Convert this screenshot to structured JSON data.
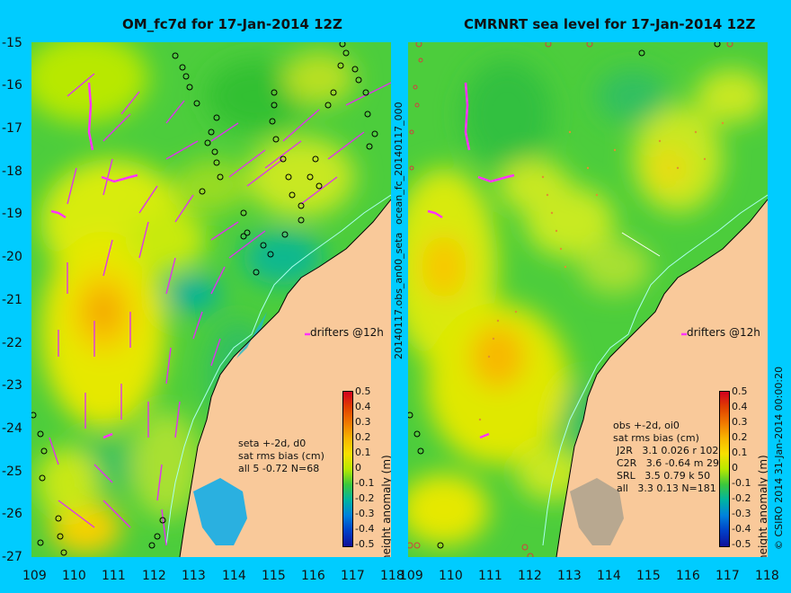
{
  "left_panel": {
    "title": "OM_fc7d for 17-Jan-2014 12Z",
    "drifter_label": "drifters @12h",
    "stats": [
      "seta +-2d, d0",
      "sat rms bias (cm)",
      "all 5 -0.72 N=68"
    ]
  },
  "right_panel": {
    "title": "CMRNRT sea level  for 17-Jan-2014 12Z",
    "drifter_label": "drifters @12h",
    "stats": [
      "obs +-2d, oi0",
      "sat rms bias (cm)",
      "J2R   3.1 0.026 r 102",
      "C2R   3.6 -0.64 m 29",
      "SRL   3.5 0.79 k 50",
      "all   3.3 0.13 N=181"
    ]
  },
  "middle_label": "20140117.obs_an00_seta",
  "middle_label_2": "ocean_fc_20140117_000",
  "right_credit": "© CSIRO 2014   31-Jan-2014 00:00:20",
  "colorbar_title": "height anomaly (m)",
  "colorbar_ticks": [
    "0.5",
    "0.4",
    "0.3",
    "0.2",
    "0.1",
    "0",
    "-0.1",
    "-0.2",
    "-0.3",
    "-0.4",
    "-0.5"
  ],
  "colorbar_colors": [
    "#d2001e",
    "#e04000",
    "#f07800",
    "#f8b400",
    "#f8e000",
    "#b8e800",
    "#3cc83c",
    "#00b4a0",
    "#0082dc",
    "#0040c8",
    "#10109a"
  ],
  "lat_ticks": [
    "-15",
    "-16",
    "-17",
    "-18",
    "-19",
    "-20",
    "-21",
    "-22",
    "-23",
    "-24",
    "-25",
    "-26",
    "-27"
  ],
  "lon_ticks": [
    "109",
    "110",
    "111",
    "112",
    "113",
    "114",
    "115",
    "116",
    "117",
    "118"
  ],
  "colors": {
    "background": "#00ccff",
    "land": "#f9c99a",
    "drifter": "#ff33ff",
    "vector": "#dd33ee",
    "coast": "#aaffee"
  }
}
